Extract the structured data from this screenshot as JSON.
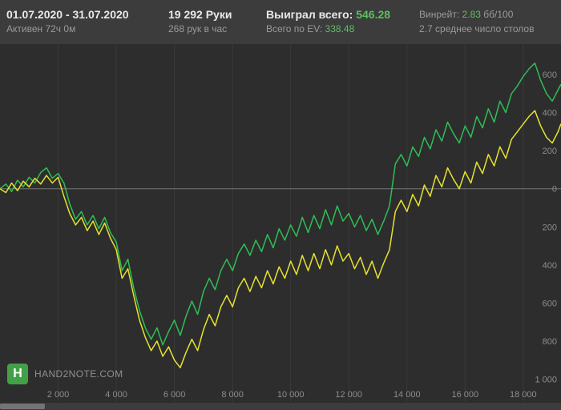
{
  "header": {
    "date_range": "01.07.2020 - 31.07.2020",
    "active_time": "Активен 72ч 0м",
    "hands": "19 292 Руки",
    "hands_per_hour": "268 рук в час",
    "won_label": "Выиграл всего:",
    "won_value": "546.28",
    "ev_label": "Всего по EV:",
    "ev_value": "338.48",
    "winrate_label": "Винрейт:",
    "winrate_value": "2.83",
    "winrate_unit": "бб/100",
    "avg_tables": "2.7 среднее число столов"
  },
  "logo": {
    "text": "HAND2NOTE.COM",
    "icon_letter": "H"
  },
  "colors": {
    "accent_green": "#5cbf60",
    "winnings_line": "#2fbe55",
    "ev_line": "#e6e22e",
    "grid": "#3a3a3a",
    "zero_line": "#777777",
    "axis_text": "#8d8d8d",
    "header_bg": "#3c3c3c",
    "chart_bg": "#2d2d2d"
  },
  "chart_data": {
    "type": "line",
    "title": "",
    "xlabel": "hands",
    "ylabel": "",
    "legend": "none",
    "grid": "vertical-only",
    "y_axis_side": "right",
    "xlim": [
      0,
      19300
    ],
    "ylim": [
      -1040,
      760
    ],
    "x_ticks": [
      {
        "value": 2000,
        "label": "2 000"
      },
      {
        "value": 4000,
        "label": "4 000"
      },
      {
        "value": 6000,
        "label": "6 000"
      },
      {
        "value": 8000,
        "label": "8 000"
      },
      {
        "value": 10000,
        "label": "10 000"
      },
      {
        "value": 12000,
        "label": "12 000"
      },
      {
        "value": 14000,
        "label": "14 000"
      },
      {
        "value": 16000,
        "label": "16 000"
      },
      {
        "value": 18000,
        "label": "18 000"
      }
    ],
    "y_ticks": [
      {
        "value": 600,
        "label": "600"
      },
      {
        "value": 400,
        "label": "400"
      },
      {
        "value": 200,
        "label": "200"
      },
      {
        "value": 0,
        "label": "0"
      },
      {
        "value": -200,
        "label": "200"
      },
      {
        "value": -400,
        "label": "400"
      },
      {
        "value": -600,
        "label": "600"
      },
      {
        "value": -800,
        "label": "800"
      },
      {
        "value": -1000,
        "label": "1 000"
      }
    ],
    "x": [
      0,
      200,
      400,
      600,
      800,
      1000,
      1200,
      1400,
      1600,
      1800,
      2000,
      2200,
      2400,
      2600,
      2800,
      3000,
      3200,
      3400,
      3600,
      3800,
      4000,
      4200,
      4400,
      4600,
      4800,
      5000,
      5200,
      5400,
      5600,
      5800,
      6000,
      6200,
      6400,
      6600,
      6800,
      7000,
      7200,
      7400,
      7600,
      7800,
      8000,
      8200,
      8400,
      8600,
      8800,
      9000,
      9200,
      9400,
      9600,
      9800,
      10000,
      10200,
      10400,
      10600,
      10800,
      11000,
      11200,
      11400,
      11600,
      11800,
      12000,
      12200,
      12400,
      12600,
      12800,
      13000,
      13200,
      13400,
      13600,
      13800,
      14000,
      14200,
      14400,
      14600,
      14800,
      15000,
      15200,
      15400,
      15600,
      15800,
      16000,
      16200,
      16400,
      16600,
      16800,
      17000,
      17200,
      17400,
      17600,
      17800,
      18000,
      18200,
      18400,
      18600,
      18800,
      19000,
      19200,
      19292
    ],
    "series": [
      {
        "name": "Выиграл всего",
        "color": "#2fbe55",
        "final_value": 546.28,
        "values": [
          0,
          25,
          -15,
          45,
          10,
          60,
          30,
          85,
          110,
          55,
          80,
          30,
          -80,
          -160,
          -120,
          -190,
          -140,
          -210,
          -150,
          -230,
          -280,
          -430,
          -370,
          -520,
          -640,
          -730,
          -790,
          -730,
          -820,
          -750,
          -690,
          -770,
          -670,
          -590,
          -660,
          -540,
          -470,
          -530,
          -430,
          -370,
          -430,
          -340,
          -290,
          -350,
          -270,
          -330,
          -240,
          -310,
          -210,
          -270,
          -190,
          -250,
          -150,
          -230,
          -140,
          -210,
          -110,
          -190,
          -90,
          -170,
          -130,
          -200,
          -140,
          -220,
          -160,
          -240,
          -170,
          -90,
          130,
          180,
          120,
          220,
          170,
          270,
          210,
          310,
          250,
          350,
          290,
          240,
          330,
          270,
          380,
          320,
          420,
          350,
          460,
          400,
          500,
          540,
          590,
          630,
          660,
          570,
          500,
          460,
          520,
          546.28
        ]
      },
      {
        "name": "Всего по EV",
        "color": "#e6e22e",
        "final_value": 338.48,
        "values": [
          0,
          -20,
          30,
          -10,
          40,
          10,
          55,
          25,
          70,
          30,
          60,
          -40,
          -130,
          -190,
          -150,
          -220,
          -170,
          -240,
          -180,
          -260,
          -320,
          -470,
          -420,
          -560,
          -690,
          -780,
          -850,
          -800,
          -880,
          -830,
          -900,
          -940,
          -860,
          -790,
          -850,
          -740,
          -660,
          -720,
          -620,
          -560,
          -620,
          -520,
          -470,
          -540,
          -460,
          -520,
          -430,
          -500,
          -410,
          -470,
          -380,
          -450,
          -350,
          -430,
          -340,
          -420,
          -320,
          -400,
          -300,
          -380,
          -340,
          -420,
          -360,
          -450,
          -380,
          -470,
          -390,
          -320,
          -120,
          -60,
          -120,
          -30,
          -90,
          20,
          -40,
          70,
          10,
          110,
          50,
          0,
          90,
          30,
          140,
          80,
          180,
          120,
          220,
          160,
          260,
          300,
          340,
          380,
          410,
          330,
          270,
          240,
          300,
          338.48
        ]
      }
    ]
  }
}
